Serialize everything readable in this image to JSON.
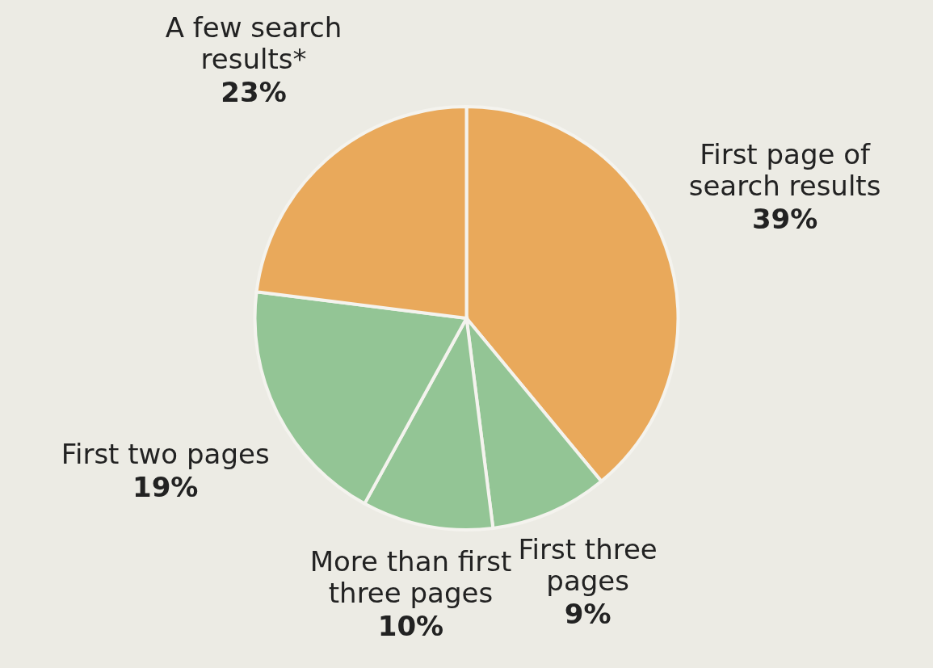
{
  "chart_data": {
    "type": "pie",
    "categories": [
      "First page of search results",
      "First three pages",
      "More than first three pages",
      "First two pages",
      "A few search results*"
    ],
    "values": [
      39,
      9,
      10,
      19,
      23
    ],
    "colors": [
      "#e9a95b",
      "#93c595",
      "#93c595",
      "#93c595",
      "#e9a95b"
    ],
    "value_labels": [
      "39%",
      "9%",
      "10%",
      "19%",
      "23%"
    ]
  }
}
